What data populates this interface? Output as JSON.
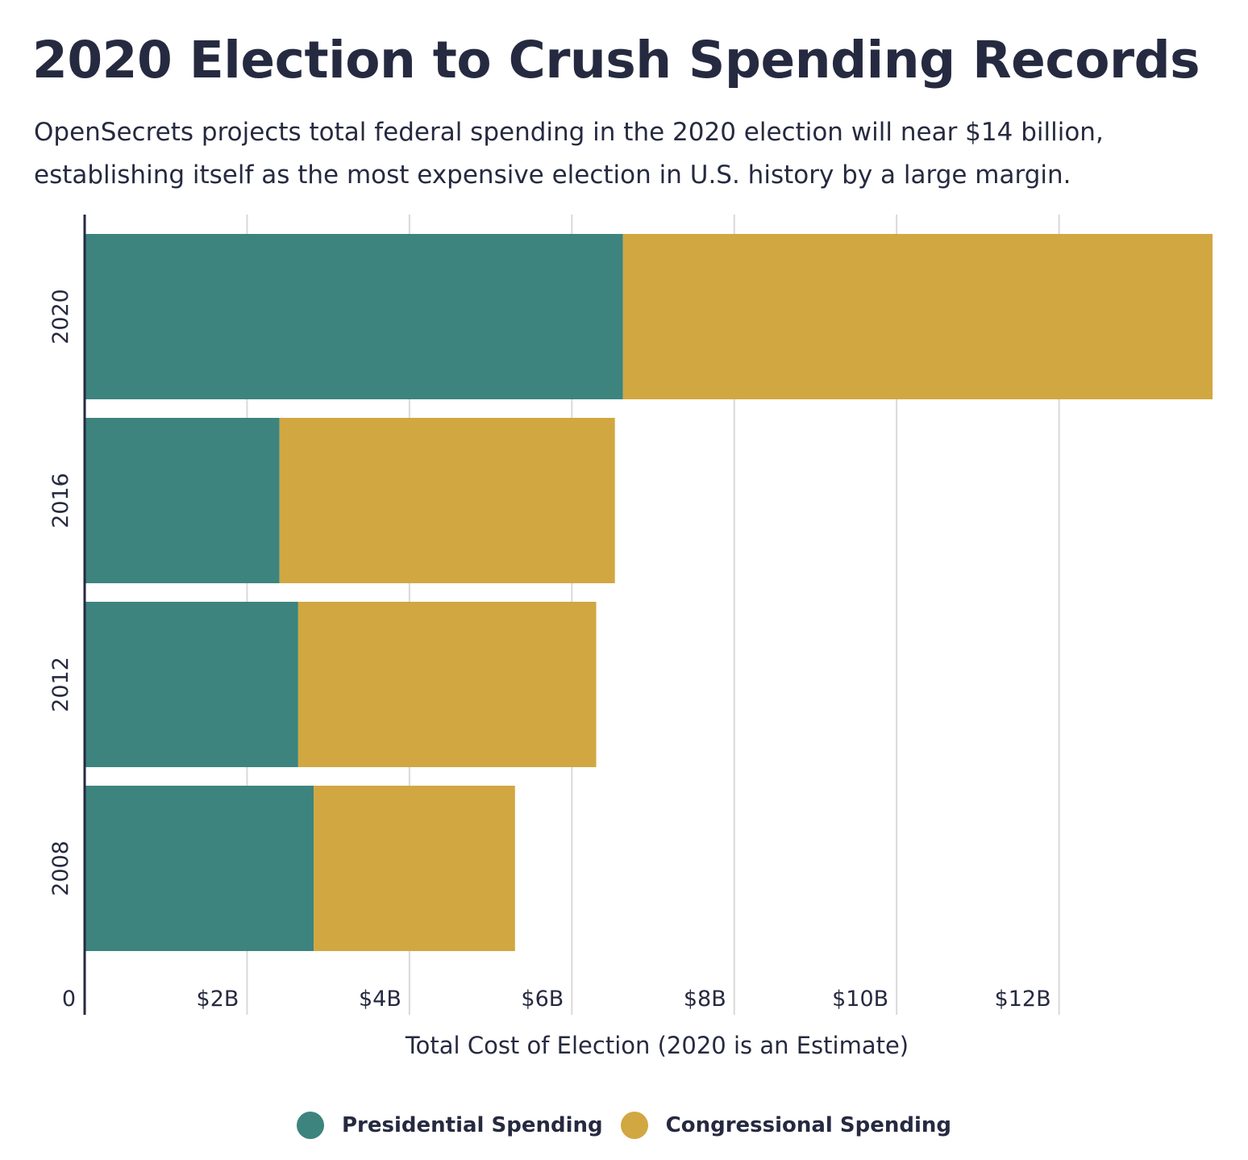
{
  "title": "2020 Election to Crush Spending Records",
  "subtitle": "OpenSecrets projects total federal spending in the 2020 election will near $14 billion, establishing itself as the most expensive election in U.S. history by a large margin.",
  "colors": {
    "presidential": "#3d847f",
    "congressional": "#d1a741",
    "text": "#262a40",
    "grid": "#d9d9d9"
  },
  "chart_data": {
    "type": "bar",
    "orientation": "horizontal",
    "stacked": true,
    "categories": [
      "2020",
      "2016",
      "2012",
      "2008"
    ],
    "series": [
      {
        "name": "Presidential Spending",
        "values": [
          6.63,
          2.4,
          2.63,
          2.82
        ]
      },
      {
        "name": "Congressional Spending",
        "values": [
          7.26,
          4.13,
          3.67,
          2.48
        ]
      }
    ],
    "xlabel": "Total Cost of Election (2020 is an Estimate)",
    "ylabel": "",
    "xlim": [
      0,
      13.9
    ],
    "xticks": [
      0,
      2,
      4,
      6,
      8,
      10,
      12
    ],
    "xtick_labels": [
      "0",
      "$2B",
      "$4B",
      "$6B",
      "$8B",
      "$10B",
      "$12B"
    ],
    "grid": "vertical",
    "legend_position": "bottom"
  }
}
